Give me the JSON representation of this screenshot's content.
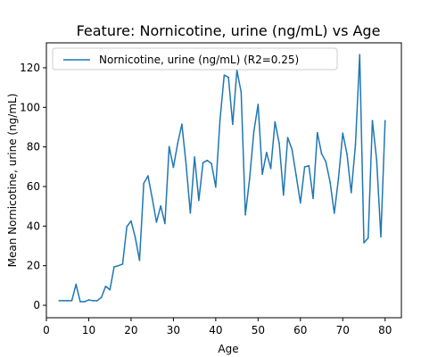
{
  "chart_data": {
    "type": "line",
    "title": "Feature: Nornicotine, urine (ng/mL) vs Age",
    "xlabel": "Age",
    "ylabel": "Mean Nornicotine, urine (ng/mL)",
    "xlim": [
      0,
      83.85
    ],
    "ylim": [
      -6.3,
      132.6
    ],
    "xticks": [
      0,
      10,
      20,
      30,
      40,
      50,
      60,
      70,
      80
    ],
    "yticks": [
      0,
      20,
      40,
      60,
      80,
      100,
      120
    ],
    "grid": false,
    "legend": "upper-left",
    "series": [
      {
        "name": "Nornicotine, urine (ng/mL) (R2=0.25)",
        "color": "#1f77b4",
        "x": [
          3,
          4,
          5,
          6,
          7,
          8,
          9,
          10,
          11,
          12,
          13,
          14,
          15,
          16,
          17,
          18,
          19,
          20,
          21,
          22,
          23,
          24,
          25,
          26,
          27,
          28,
          29,
          30,
          31,
          32,
          33,
          34,
          35,
          36,
          37,
          38,
          39,
          40,
          41,
          42,
          43,
          44,
          45,
          46,
          47,
          48,
          49,
          50,
          51,
          52,
          53,
          54,
          55,
          56,
          57,
          58,
          59,
          60,
          61,
          62,
          63,
          64,
          65,
          66,
          67,
          68,
          69,
          70,
          71,
          72,
          73,
          74,
          75,
          76,
          77,
          78,
          79,
          80
        ],
        "y": [
          2.3,
          2.3,
          2.3,
          2.3,
          10.6,
          1.8,
          1.8,
          2.7,
          2.3,
          2.3,
          4.0,
          9.6,
          7.8,
          19.4,
          20.0,
          20.8,
          39.7,
          42.6,
          34.2,
          22.7,
          61.6,
          65.4,
          54.0,
          42.0,
          50.2,
          41.3,
          80.2,
          69.7,
          81.7,
          91.5,
          71.1,
          46.6,
          74.9,
          53.0,
          72.1,
          73.2,
          71.6,
          59.7,
          93.5,
          116.3,
          115.2,
          91.4,
          118.7,
          107.7,
          45.7,
          64.0,
          87.7,
          101.5,
          66.2,
          77.2,
          69.1,
          92.7,
          81.7,
          55.7,
          84.7,
          78.9,
          65.5,
          51.7,
          69.9,
          70.5,
          54.0,
          87.2,
          76.6,
          72.6,
          62.3,
          46.5,
          64.3,
          87.0,
          76.4,
          56.9,
          81.2,
          126.6,
          31.6,
          34.0,
          93.3,
          73.5,
          34.6,
          93.3
        ]
      }
    ]
  }
}
